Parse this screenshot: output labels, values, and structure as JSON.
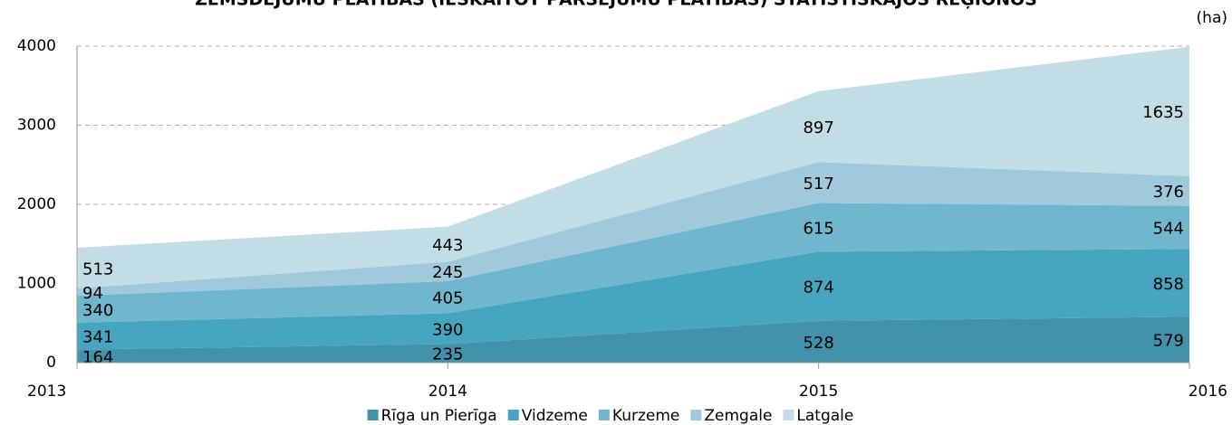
{
  "chart_data": {
    "type": "area",
    "title": "ZEMSDĒJUMU PLATĪBAS (IESKAITOT PĀRSĒJUMU PLATĪBAS) STATISTISKAJOS REĢIONOS",
    "y_unit": "(ha)",
    "x": [
      2013,
      2014,
      2015,
      2016
    ],
    "xlim": [
      2013,
      2016
    ],
    "xticks": [
      2013,
      2014,
      2015,
      2016
    ],
    "ylim": [
      0,
      4000
    ],
    "yticks": [
      0,
      1000,
      2000,
      3000,
      4000
    ],
    "grid": true,
    "stacked": true,
    "legend": "bottom",
    "series": [
      {
        "name": "Rīga un Pierīga",
        "color": "#4192aa",
        "values": [
          164,
          235,
          528,
          579
        ]
      },
      {
        "name": "Vidzeme",
        "color": "#48a5c0",
        "values": [
          341,
          390,
          874,
          858
        ]
      },
      {
        "name": "Kurzeme",
        "color": "#70b6cd",
        "values": [
          340,
          405,
          615,
          544
        ]
      },
      {
        "name": "Zemgale",
        "color": "#a0cadb",
        "values": [
          94,
          245,
          517,
          376
        ]
      },
      {
        "name": "Latgale",
        "color": "#c3dde6",
        "values": [
          513,
          443,
          897,
          1635
        ]
      }
    ]
  }
}
